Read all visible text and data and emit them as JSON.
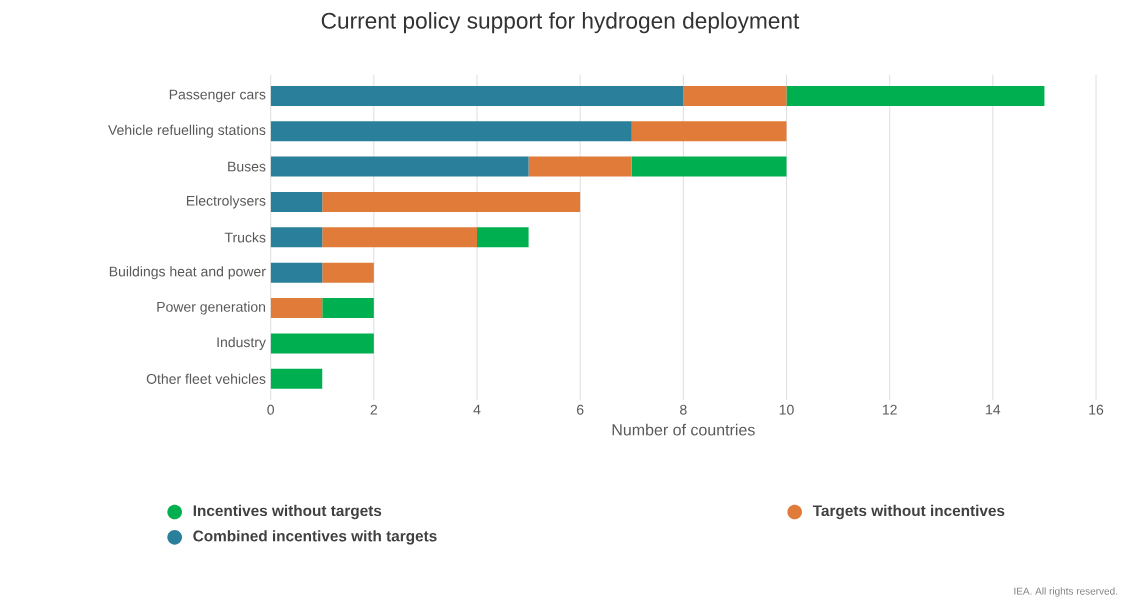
{
  "chart_data": {
    "type": "bar",
    "orientation": "horizontal",
    "stacked": true,
    "title": "Current policy support for hydrogen deployment",
    "xlabel": "Number of countries",
    "categories": [
      "Passenger cars",
      "Vehicle refuelling stations",
      "Buses",
      "Electrolysers",
      "Trucks",
      "Buildings heat and power",
      "Power generation",
      "Industry",
      "Other fleet vehicles"
    ],
    "series": [
      {
        "name": "Combined incentives with targets",
        "color": "#2a7f9a",
        "values": [
          8,
          7,
          5,
          1,
          1,
          1,
          0,
          0,
          0
        ]
      },
      {
        "name": "Targets without incentives",
        "color": "#e07b39",
        "values": [
          2,
          3,
          2,
          5,
          3,
          1,
          1,
          0,
          0
        ]
      },
      {
        "name": "Incentives without targets",
        "color": "#00b050",
        "values": [
          5,
          0,
          3,
          0,
          1,
          0,
          1,
          2,
          1
        ]
      }
    ],
    "xlim": [
      0,
      16
    ],
    "xticks": [
      0,
      2,
      4,
      6,
      8,
      10,
      12,
      14,
      16
    ],
    "grid": "x",
    "legend": "bottom",
    "annotations": [
      "IEA. All rights reserved."
    ]
  }
}
